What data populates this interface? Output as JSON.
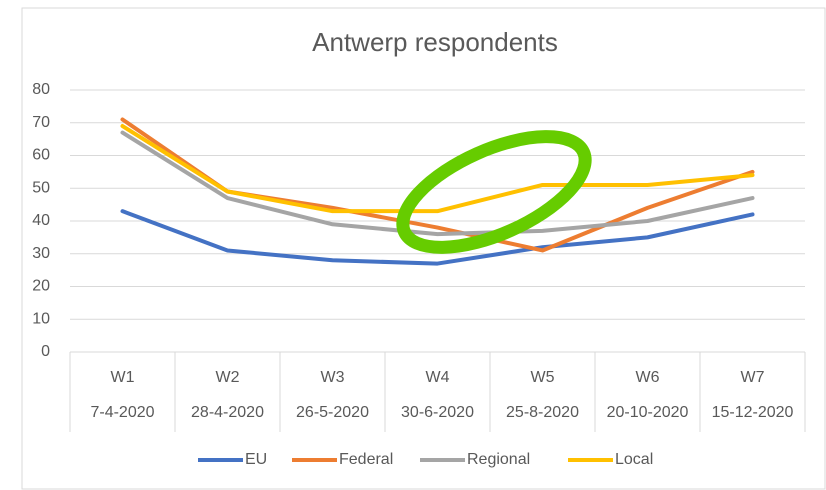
{
  "chart_data": {
    "type": "line",
    "title": "Antwerp respondents",
    "categories": [
      "W1",
      "W2",
      "W3",
      "W4",
      "W5",
      "W6",
      "W7"
    ],
    "subcategories": [
      "7-4-2020",
      "28-4-2020",
      "26-5-2020",
      "30-6-2020",
      "25-8-2020",
      "20-10-2020",
      "15-12-2020"
    ],
    "series": [
      {
        "name": "EU",
        "color": "#4472c4",
        "values": [
          43,
          31,
          28,
          27,
          32,
          35,
          42
        ]
      },
      {
        "name": "Federal",
        "color": "#ed7d31",
        "values": [
          71,
          49,
          44,
          38,
          31,
          44,
          55
        ]
      },
      {
        "name": "Regional",
        "color": "#a5a5a5",
        "values": [
          67,
          47,
          39,
          36,
          37,
          40,
          47
        ]
      },
      {
        "name": "Local",
        "color": "#ffc000",
        "values": [
          69,
          49,
          43,
          43,
          51,
          51,
          54
        ]
      }
    ],
    "ylim": [
      0,
      80
    ],
    "yticks": [
      0,
      10,
      20,
      30,
      40,
      50,
      60,
      70,
      80
    ],
    "grid": true,
    "legend": "bottom"
  }
}
